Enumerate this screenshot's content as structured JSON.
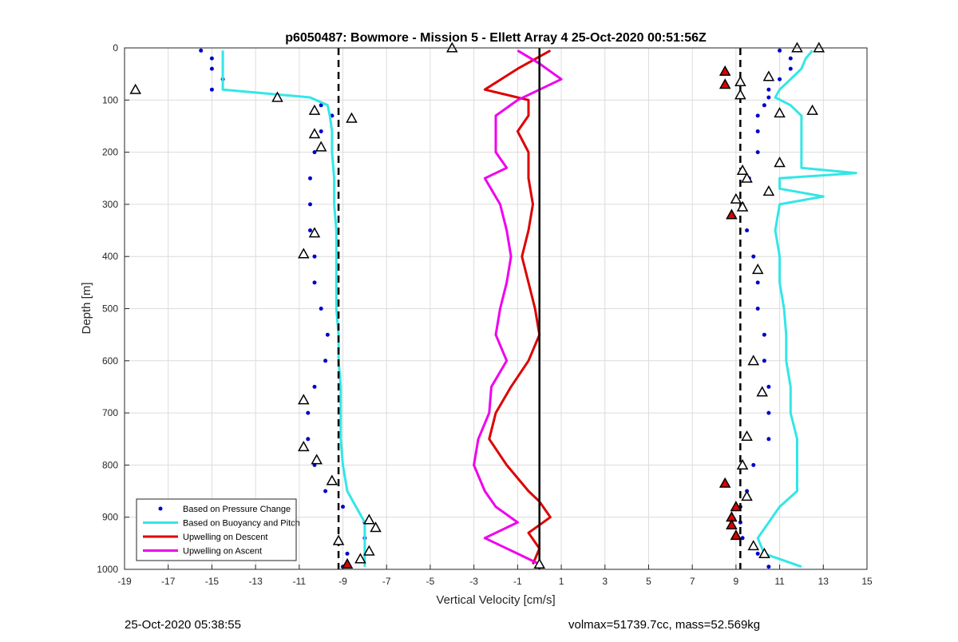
{
  "chart_data": {
    "type": "scatter",
    "title": "p6050487: Bowmore - Mission 5 - Ellett Array 4 25-Oct-2020 00:51:56Z",
    "xlabel": "Vertical Velocity [cm/s]",
    "ylabel": "Depth [m]",
    "xlim": [
      -19,
      15
    ],
    "ylim": [
      1000,
      0
    ],
    "y_reversed": true,
    "x_ticks": [
      -19,
      -17,
      -15,
      -13,
      -11,
      -9,
      -7,
      -5,
      -3,
      -1,
      1,
      3,
      5,
      7,
      9,
      11,
      13,
      15
    ],
    "y_ticks": [
      0,
      100,
      200,
      300,
      400,
      500,
      600,
      700,
      800,
      900,
      1000
    ],
    "grid": true,
    "legend_position": "bottom-left",
    "reference_lines": [
      {
        "x": -9.2,
        "style": "dashed",
        "color": "#000000"
      },
      {
        "x": 9.2,
        "style": "dashed",
        "color": "#000000"
      },
      {
        "x": 0,
        "style": "solid",
        "color": "#000000"
      }
    ],
    "series": [
      {
        "name": "Based on Pressure Change",
        "style": "points",
        "color": "#0000cc",
        "segments": [
          {
            "depth": [
              5,
              20,
              40,
              60,
              80,
              95,
              110,
              130,
              160,
              200,
              250,
              300,
              350,
              400,
              450,
              500,
              550,
              600,
              650,
              700,
              750,
              800,
              850,
              880,
              910,
              940,
              970,
              995
            ],
            "velocity": [
              -15.5,
              -15,
              -15,
              -14.5,
              -15,
              -12,
              -10,
              -9.5,
              -10,
              -10.3,
              -10.5,
              -10.5,
              -10.5,
              -10.3,
              -10.3,
              -10,
              -9.7,
              -9.8,
              -10.3,
              -10.6,
              -10.6,
              -10.3,
              -9.8,
              -9,
              -8,
              -8,
              -8.8,
              -9
            ]
          },
          {
            "depth": [
              5,
              20,
              40,
              60,
              80,
              95,
              110,
              130,
              160,
              200,
              250,
              300,
              350,
              400,
              450,
              500,
              550,
              600,
              650,
              700,
              750,
              800,
              850,
              880,
              910,
              940,
              970,
              995
            ],
            "velocity": [
              11,
              11.5,
              11.5,
              11,
              10.5,
              10.5,
              10.3,
              10,
              10,
              10,
              9.6,
              9.3,
              9.5,
              9.8,
              10,
              10,
              10.3,
              10.3,
              10.5,
              10.5,
              10.5,
              9.8,
              9.5,
              9.2,
              9.2,
              9.3,
              10,
              10.5
            ]
          }
        ]
      },
      {
        "name": "Based on Buoyancy and Pitch",
        "style": "line",
        "color": "#33e6e6",
        "segments": [
          {
            "depth": [
              5,
              20,
              40,
              60,
              80,
              95,
              110,
              130,
              160,
              200,
              250,
              300,
              350,
              400,
              450,
              500,
              550,
              600,
              650,
              700,
              750,
              800,
              850,
              880,
              910,
              940,
              970,
              995
            ],
            "velocity": [
              -14.5,
              -14.5,
              -14.5,
              -14.5,
              -14.5,
              -10.5,
              -9.7,
              -9.6,
              -9.5,
              -9.5,
              -9.4,
              -9.4,
              -9.3,
              -9.3,
              -9.3,
              -9.3,
              -9.2,
              -9.2,
              -9.1,
              -9.1,
              -9.1,
              -9.0,
              -8.8,
              -8.4,
              -8.0,
              -8.0,
              -8.0,
              -8.0
            ]
          },
          {
            "depth": [
              5,
              20,
              40,
              60,
              80,
              95,
              110,
              130,
              160,
              200,
              230,
              240,
              250,
              270,
              285,
              300,
              350,
              400,
              450,
              500,
              550,
              600,
              650,
              700,
              750,
              800,
              850,
              880,
              910,
              940,
              970,
              995
            ],
            "velocity": [
              12.5,
              12.2,
              12,
              11.5,
              11,
              10.8,
              11.5,
              12,
              12,
              12,
              12,
              14.5,
              11,
              11,
              13,
              11,
              10.8,
              11,
              11,
              11.2,
              11.3,
              11.3,
              11.5,
              11.5,
              11.8,
              11.8,
              11.8,
              11,
              10.5,
              10,
              10.3,
              12
            ]
          }
        ]
      },
      {
        "name": "Upwelling on Descent",
        "style": "line",
        "color": "#dd0000",
        "depth": [
          5,
          40,
          80,
          100,
          130,
          160,
          200,
          250,
          300,
          350,
          400,
          450,
          500,
          550,
          600,
          650,
          700,
          750,
          800,
          850,
          870,
          900,
          930,
          960,
          990
        ],
        "velocity": [
          0.5,
          -1,
          -2.5,
          -0.5,
          -0.5,
          -1,
          -0.5,
          -0.5,
          -0.3,
          -0.5,
          -0.8,
          -0.5,
          -0.2,
          0,
          -0.5,
          -1.3,
          -2,
          -2.3,
          -1.5,
          -0.5,
          0,
          0.5,
          -0.5,
          0,
          -0.3
        ]
      },
      {
        "name": "Upwelling on Ascent",
        "style": "line",
        "color": "#ee00ee",
        "depth": [
          5,
          30,
          60,
          100,
          130,
          160,
          200,
          230,
          250,
          300,
          350,
          400,
          450,
          500,
          550,
          600,
          650,
          700,
          750,
          800,
          850,
          880,
          910,
          940,
          970,
          990
        ],
        "velocity": [
          -1,
          0,
          1,
          -1,
          -2,
          -2,
          -2,
          -1.5,
          -2.5,
          -1.8,
          -1.5,
          -1.3,
          -1.5,
          -1.8,
          -2,
          -1.5,
          -2.2,
          -2.3,
          -2.8,
          -3,
          -2.5,
          -2,
          -1,
          -2.5,
          -1,
          0
        ]
      }
    ],
    "markers": [
      {
        "depth": 80,
        "velocity": -18.5,
        "color": "#ffffff"
      },
      {
        "depth": 95,
        "velocity": -12,
        "color": "#ffffff"
      },
      {
        "depth": 120,
        "velocity": -10.3,
        "color": "#ffffff"
      },
      {
        "depth": 135,
        "velocity": -8.6,
        "color": "#ffffff"
      },
      {
        "depth": 165,
        "velocity": -10.3,
        "color": "#ffffff"
      },
      {
        "depth": 190,
        "velocity": -10,
        "color": "#ffffff"
      },
      {
        "depth": 355,
        "velocity": -10.3,
        "color": "#ffffff"
      },
      {
        "depth": 395,
        "velocity": -10.8,
        "color": "#ffffff"
      },
      {
        "depth": 675,
        "velocity": -10.8,
        "color": "#ffffff"
      },
      {
        "depth": 765,
        "velocity": -10.8,
        "color": "#ffffff"
      },
      {
        "depth": 790,
        "velocity": -10.2,
        "color": "#ffffff"
      },
      {
        "depth": 830,
        "velocity": -9.5,
        "color": "#ffffff"
      },
      {
        "depth": 905,
        "velocity": -7.8,
        "color": "#ffffff"
      },
      {
        "depth": 920,
        "velocity": -7.5,
        "color": "#ffffff"
      },
      {
        "depth": 945,
        "velocity": -9.2,
        "color": "#ffffff"
      },
      {
        "depth": 965,
        "velocity": -7.8,
        "color": "#ffffff"
      },
      {
        "depth": 980,
        "velocity": -8.2,
        "color": "#ffffff"
      },
      {
        "depth": 990,
        "velocity": -8.8,
        "color": "#dd0000"
      },
      {
        "depth": 0,
        "velocity": -4,
        "color": "#ffffff"
      },
      {
        "depth": 990,
        "velocity": 0,
        "color": "#ffffff"
      },
      {
        "depth": 0,
        "velocity": 11.8,
        "color": "#ffffff"
      },
      {
        "depth": 0,
        "velocity": 12.8,
        "color": "#ffffff"
      },
      {
        "depth": 45,
        "velocity": 8.5,
        "color": "#dd0000"
      },
      {
        "depth": 55,
        "velocity": 10.5,
        "color": "#ffffff"
      },
      {
        "depth": 65,
        "velocity": 9.2,
        "color": "#ffffff"
      },
      {
        "depth": 70,
        "velocity": 8.5,
        "color": "#dd0000"
      },
      {
        "depth": 90,
        "velocity": 9.2,
        "color": "#ffffff"
      },
      {
        "depth": 120,
        "velocity": 12.5,
        "color": "#ffffff"
      },
      {
        "depth": 125,
        "velocity": 11,
        "color": "#ffffff"
      },
      {
        "depth": 220,
        "velocity": 11,
        "color": "#ffffff"
      },
      {
        "depth": 235,
        "velocity": 9.3,
        "color": "#ffffff"
      },
      {
        "depth": 250,
        "velocity": 9.5,
        "color": "#ffffff"
      },
      {
        "depth": 275,
        "velocity": 10.5,
        "color": "#ffffff"
      },
      {
        "depth": 290,
        "velocity": 9,
        "color": "#ffffff"
      },
      {
        "depth": 305,
        "velocity": 9.3,
        "color": "#ffffff"
      },
      {
        "depth": 320,
        "velocity": 8.8,
        "color": "#dd0000"
      },
      {
        "depth": 425,
        "velocity": 10,
        "color": "#ffffff"
      },
      {
        "depth": 600,
        "velocity": 9.8,
        "color": "#ffffff"
      },
      {
        "depth": 660,
        "velocity": 10.2,
        "color": "#ffffff"
      },
      {
        "depth": 745,
        "velocity": 9.5,
        "color": "#ffffff"
      },
      {
        "depth": 800,
        "velocity": 9.3,
        "color": "#ffffff"
      },
      {
        "depth": 835,
        "velocity": 8.5,
        "color": "#dd0000"
      },
      {
        "depth": 860,
        "velocity": 9.5,
        "color": "#ffffff"
      },
      {
        "depth": 880,
        "velocity": 9,
        "color": "#dd0000"
      },
      {
        "depth": 900,
        "velocity": 8.8,
        "color": "#dd0000"
      },
      {
        "depth": 915,
        "velocity": 8.8,
        "color": "#dd0000"
      },
      {
        "depth": 935,
        "velocity": 9,
        "color": "#dd0000"
      },
      {
        "depth": 955,
        "velocity": 9.8,
        "color": "#ffffff"
      },
      {
        "depth": 970,
        "velocity": 10.3,
        "color": "#ffffff"
      }
    ]
  },
  "footer": {
    "left_text": "25-Oct-2020 05:38:55",
    "right_text": "volmax=51739.7cc, mass=52.569kg"
  }
}
